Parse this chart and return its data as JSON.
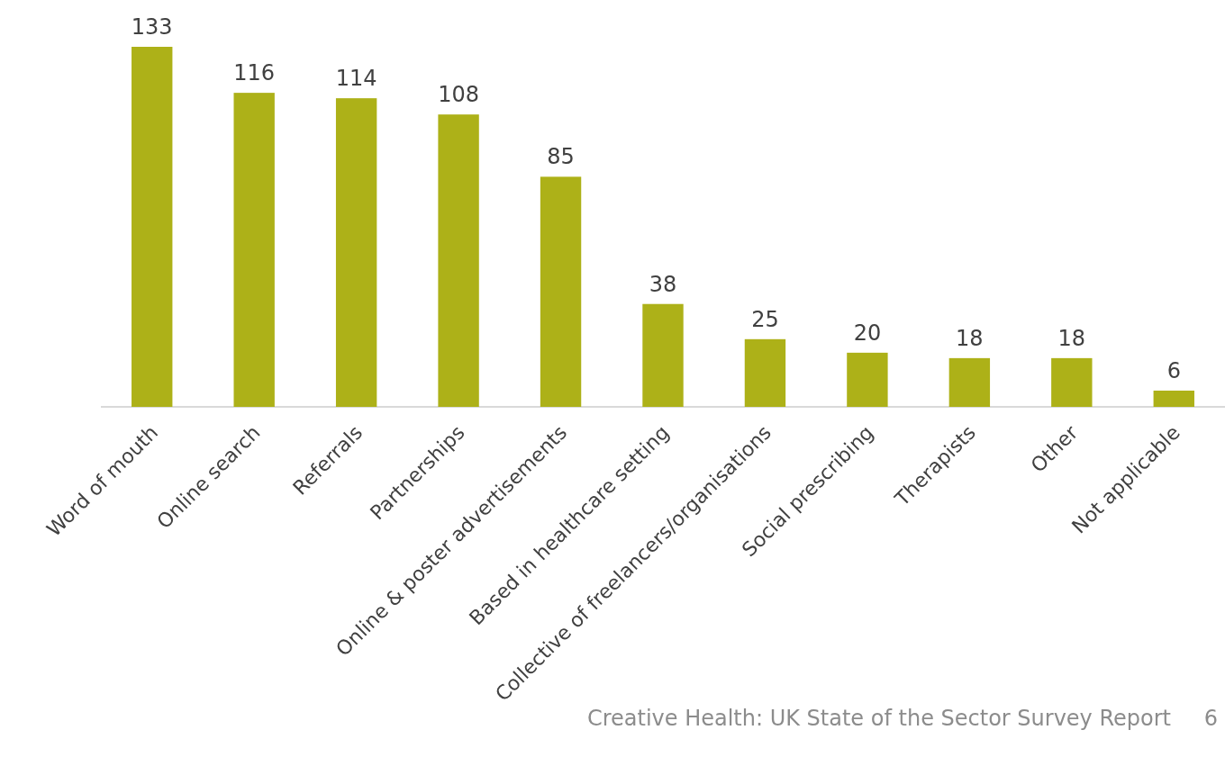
{
  "chart_data": {
    "type": "bar",
    "categories": [
      "Word of mouth",
      "Online search",
      "Referrals",
      "Partnerships",
      "Online & poster advertisements",
      "Based in healthcare setting",
      "Collective of freelancers/organisations",
      "Social prescribing",
      "Therapists",
      "Other",
      "Not applicable"
    ],
    "values": [
      133,
      116,
      114,
      108,
      85,
      38,
      25,
      20,
      18,
      18,
      6
    ],
    "color": "#adb118",
    "data_labels": true,
    "annotations": [
      "Creative Health: UK State of the Sector Survey Report",
      "6"
    ]
  }
}
